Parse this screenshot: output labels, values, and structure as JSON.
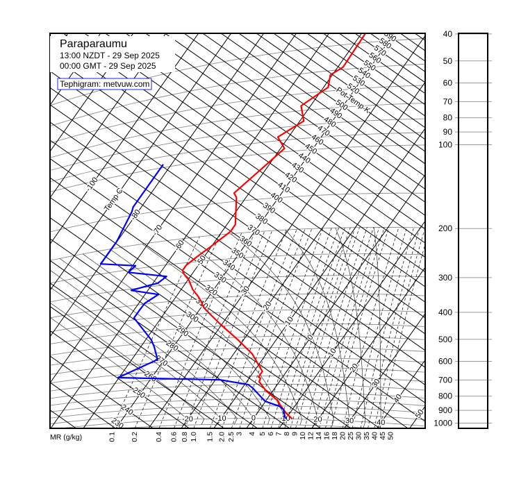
{
  "header": {
    "station": "Paraparaumu",
    "local_time": "13:00 NZDT - 29 Sep 2025",
    "utc_time": "00:00 GMT - 29 Sep 2025",
    "credit": "Tephigram: metvuw.com"
  },
  "chart_data": {
    "type": "line",
    "subtype": "tephigram",
    "title": "Paraparaumu",
    "temperature_axis_label": "Temp C",
    "potential_temperature_label": "Pot Temp K",
    "mixing_ratio_label": "MR (g/kg)",
    "pressure_unit": "hPa",
    "pressure_ticks": [
      40,
      50,
      60,
      70,
      80,
      90,
      100,
      200,
      300,
      400,
      500,
      600,
      700,
      800,
      900,
      1000
    ],
    "isotherm_labels_upper": [
      -100,
      -80,
      -70,
      -60,
      -50,
      -30,
      -20,
      -10,
      0,
      10,
      20,
      30,
      40,
      50
    ],
    "isotherm_labels_1000hPa": [
      -20,
      -10,
      0,
      10,
      20,
      30,
      40
    ],
    "dry_adiabat_labels_K": [
      230,
      240,
      250,
      260,
      270,
      280,
      290,
      300,
      310,
      320,
      330,
      340,
      350,
      360,
      370,
      380,
      390,
      400,
      410,
      420,
      430,
      440,
      450,
      460,
      470,
      480,
      490,
      500,
      520,
      530,
      540,
      550,
      560,
      570,
      580,
      590
    ],
    "mixing_ratio_ticks": [
      "0.1",
      "0.2",
      "0.4",
      "0.6",
      "0.8",
      "1.0",
      "1.5",
      "2.0",
      "2.5",
      "3",
      "4",
      "5",
      "6",
      "7",
      "8",
      "9",
      "10",
      "12",
      "14",
      "16",
      "18",
      "20",
      "25",
      "30",
      "35",
      "40",
      "45",
      "50"
    ],
    "grid": true,
    "series": [
      {
        "color": "#ff0000",
        "points": [
          [
            37,
            -48.8
          ],
          [
            49,
            -48.4
          ],
          [
            52,
            -50.6
          ],
          [
            58,
            -48.6
          ],
          [
            67,
            -52.9
          ],
          [
            77,
            -48.8
          ],
          [
            87,
            -53.3
          ],
          [
            97,
            -48.8
          ],
          [
            108,
            -50.5
          ],
          [
            139,
            -54.6
          ],
          [
            145,
            -52.9
          ],
          [
            185,
            -47.4
          ],
          [
            196,
            -47.4
          ],
          [
            224,
            -50.5
          ],
          [
            240,
            -52.3
          ],
          [
            256,
            -53.7
          ],
          [
            267,
            -53.7
          ],
          [
            277,
            -52.4
          ],
          [
            293,
            -49.7
          ],
          [
            320,
            -46.5
          ],
          [
            342,
            -43.3
          ],
          [
            360,
            -41.1
          ],
          [
            379,
            -39.2
          ],
          [
            397,
            -36.7
          ],
          [
            443,
            -30.5
          ],
          [
            513,
            -21.5
          ],
          [
            579,
            -14.3
          ],
          [
            642,
            -9.6
          ],
          [
            673,
            -7.4
          ],
          [
            705,
            -7.4
          ],
          [
            713,
            -6.5
          ],
          [
            734,
            -6.2
          ],
          [
            793,
            -2.1
          ],
          [
            860,
            3.6
          ],
          [
            891,
            5.2
          ],
          [
            955,
            8.9
          ],
          [
            1000,
            12.0
          ]
        ]
      },
      {
        "color": "#0000ff",
        "points": [
          [
            97,
            -82.5
          ],
          [
            139,
            -82.5
          ],
          [
            145,
            -81.9
          ],
          [
            188,
            -80.1
          ],
          [
            227,
            -80.2
          ],
          [
            243,
            -69.1
          ],
          [
            256,
            -69.9
          ],
          [
            278,
            -57.3
          ],
          [
            293,
            -58.5
          ],
          [
            296,
            -60.6
          ],
          [
            304,
            -65.1
          ],
          [
            325,
            -55.9
          ],
          [
            348,
            -58.2
          ],
          [
            371,
            -58.3
          ],
          [
            393,
            -58.3
          ],
          [
            488,
            -48.2
          ],
          [
            521,
            -45.8
          ],
          [
            584,
            -42.1
          ],
          [
            666,
            -50.3
          ],
          [
            718,
            -18.5
          ],
          [
            751,
            -9.0
          ],
          [
            770,
            -7.1
          ],
          [
            866,
            -0.1
          ],
          [
            902,
            5.3
          ],
          [
            927,
            7.3
          ],
          [
            982,
            9.2
          ],
          [
            1000,
            10.0
          ]
        ]
      }
    ]
  }
}
